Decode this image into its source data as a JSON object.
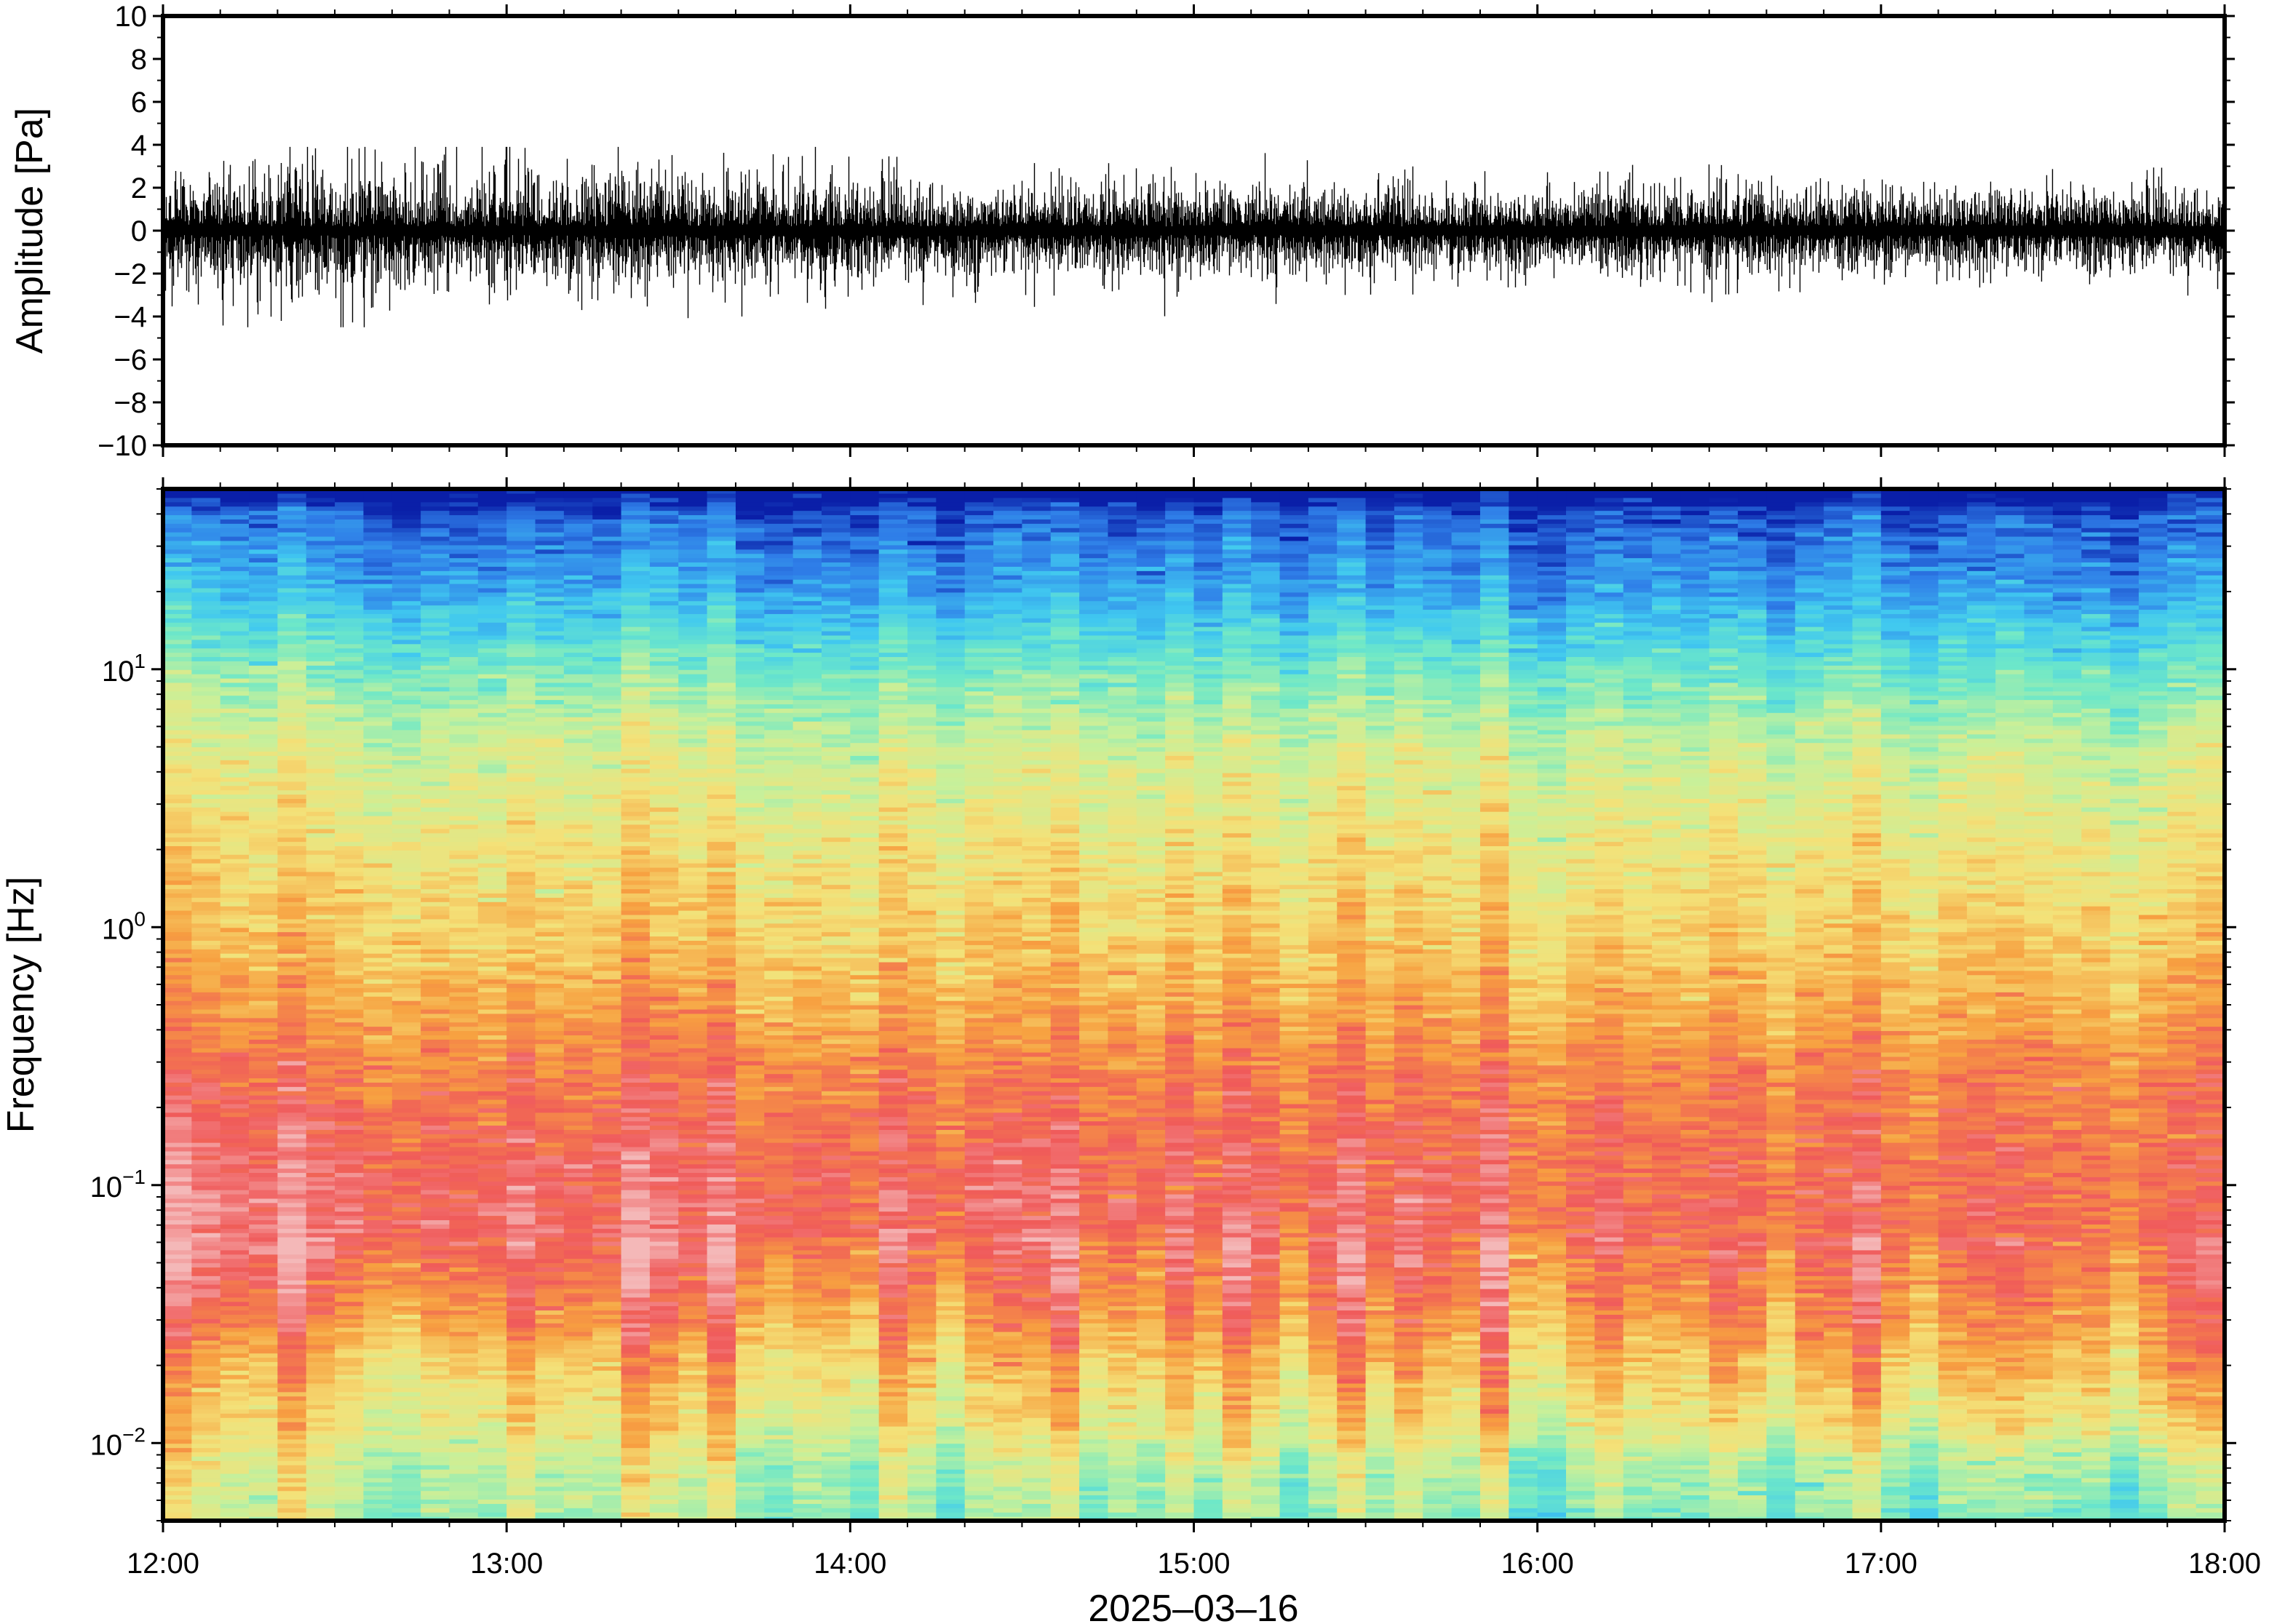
{
  "chart_data": [
    {
      "type": "line",
      "name": "waveform",
      "ylabel": "Amplitude [Pa]",
      "ylim": [
        -10,
        10
      ],
      "yticks": [
        -10,
        -8,
        -6,
        -4,
        -2,
        0,
        2,
        4,
        6,
        8,
        10
      ],
      "ytick_labels": [
        "−10",
        "−8",
        "−6",
        "−4",
        "−2",
        "0",
        "2",
        "4",
        "6",
        "8",
        "10"
      ],
      "xlim": [
        "2025-03-16 12:00",
        "2025-03-16 18:00"
      ],
      "envelope": {
        "x": [
          "2025-03-16 12:00",
          "2025-03-16 12:30",
          "2025-03-16 13:00",
          "2025-03-16 13:30",
          "2025-03-16 14:00",
          "2025-03-16 14:30",
          "2025-03-16 15:00",
          "2025-03-16 15:30",
          "2025-03-16 16:00",
          "2025-03-16 16:30",
          "2025-03-16 17:00",
          "2025-03-16 17:30",
          "2025-03-16 18:00"
        ],
        "typical_abs_amplitude": [
          1.4,
          1.6,
          1.5,
          1.3,
          1.2,
          1.1,
          1.1,
          1.0,
          1.0,
          1.1,
          1.0,
          1.0,
          1.0
        ],
        "peak_max": 3.9,
        "peak_min": -4.5
      },
      "grid": false
    },
    {
      "type": "heatmap",
      "name": "spectrogram",
      "ylabel": "Frequency [Hz]",
      "yscale": "log",
      "ylim": [
        0.005,
        50
      ],
      "yticks": [
        0.01,
        0.1,
        1,
        10
      ],
      "ytick_labels": [
        {
          "base": "10",
          "exp": "−2"
        },
        {
          "base": "10",
          "exp": "−1"
        },
        {
          "base": "10",
          "exp": "0"
        },
        {
          "base": "10",
          "exp": "1"
        }
      ],
      "xlabel": "2025–03–16",
      "xlim": [
        "2025-03-16 12:00",
        "2025-03-16 18:00"
      ],
      "xticks": [
        "12:00",
        "13:00",
        "14:00",
        "15:00",
        "16:00",
        "17:00",
        "18:00"
      ],
      "colormap": [
        "#f4b8b8",
        "#f05a5a",
        "#f7a040",
        "#f4e178",
        "#c8f09a",
        "#6ee8c8",
        "#40c8f0",
        "#2f7ee8",
        "#0a1fa8"
      ],
      "time_columns": 72,
      "description_levels": {
        "freq_hz": [
          0.005,
          0.008,
          0.012,
          0.02,
          0.03,
          0.06,
          0.12,
          0.25,
          0.5,
          1,
          2,
          5,
          10,
          20,
          40,
          50
        ],
        "level_index_start": [
          4.0,
          3.6,
          3.0,
          2.5,
          1.6,
          0.6,
          0.8,
          1.3,
          2.0,
          2.6,
          3.0,
          3.6,
          4.6,
          6.2,
          7.2,
          8.6
        ],
        "level_index_end": [
          5.0,
          4.5,
          3.2,
          2.4,
          1.9,
          1.3,
          1.4,
          1.6,
          2.3,
          2.8,
          3.2,
          4.0,
          5.2,
          6.6,
          7.4,
          8.6
        ]
      },
      "grid": false
    }
  ]
}
